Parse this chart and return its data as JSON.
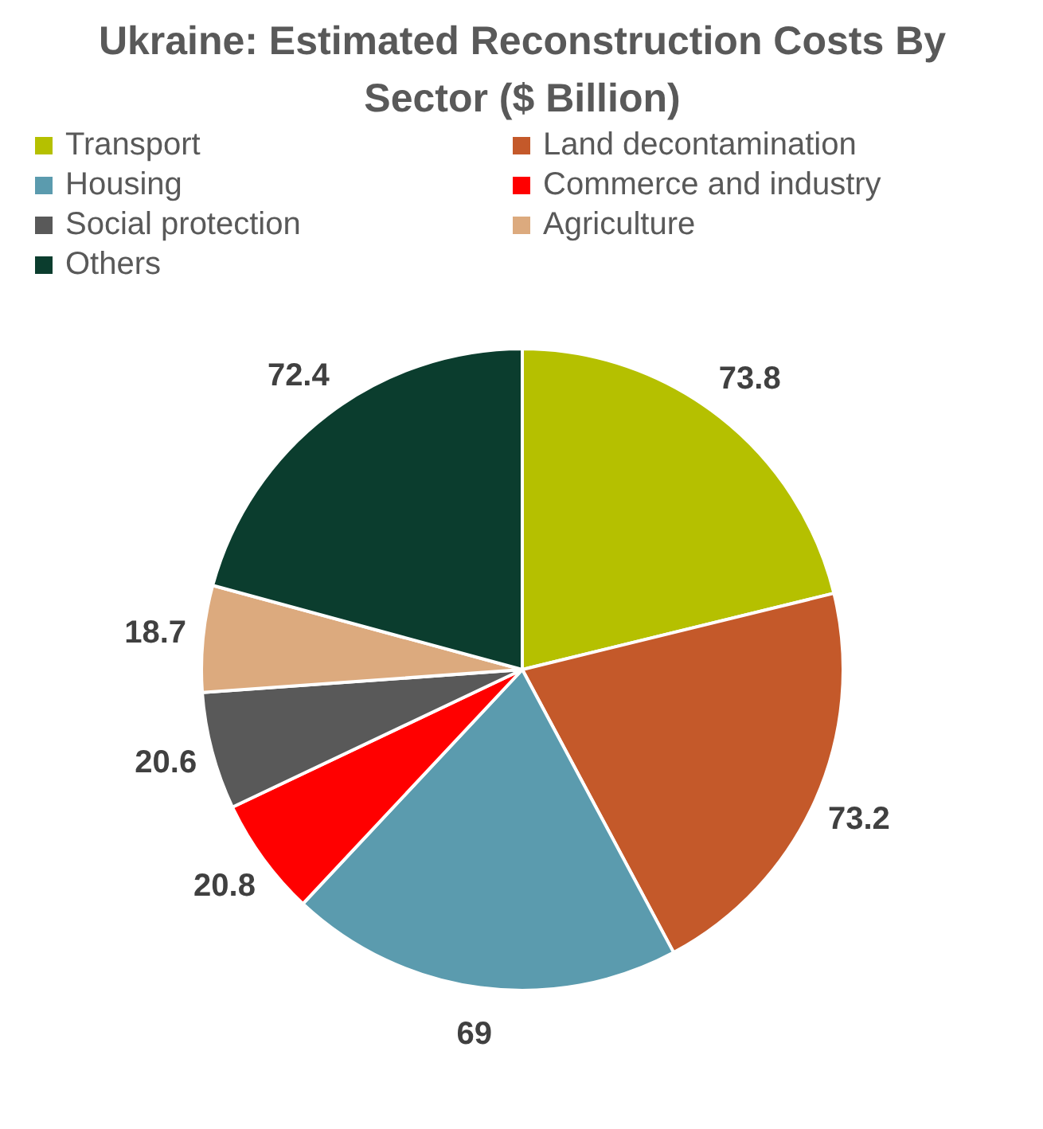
{
  "chart_data": {
    "type": "pie",
    "title": "Ukraine: Estimated Reconstruction Costs By Sector ($ Billion)",
    "categories": [
      "Transport",
      "Land decontamination",
      "Housing",
      "Commerce and industry",
      "Social protection",
      "Agriculture",
      "Others"
    ],
    "values": [
      73.8,
      73.2,
      69,
      20.8,
      20.6,
      18.7,
      72.4
    ],
    "colors": [
      "#b5c000",
      "#c4592a",
      "#5b9bae",
      "#ff0000",
      "#595959",
      "#dcaa7e",
      "#0b3d2e"
    ],
    "data_labels": true,
    "legend": "top"
  }
}
